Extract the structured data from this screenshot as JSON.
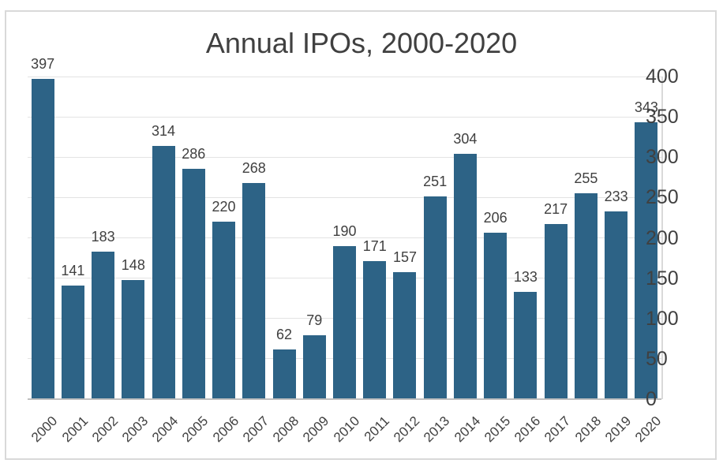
{
  "chart_data": {
    "type": "bar",
    "title": "Annual IPOs, 2000-2020",
    "categories": [
      "2000",
      "2001",
      "2002",
      "2003",
      "2004",
      "2005",
      "2006",
      "2007",
      "2008",
      "2009",
      "2010",
      "2011",
      "2012",
      "2013",
      "2014",
      "2015",
      "2016",
      "2017",
      "2018",
      "2019",
      "2020"
    ],
    "values": [
      397,
      141,
      183,
      148,
      314,
      286,
      220,
      268,
      62,
      79,
      190,
      171,
      157,
      251,
      304,
      206,
      133,
      217,
      255,
      233,
      343
    ],
    "data_labels_shown": true,
    "xlabel": "",
    "ylabel": "",
    "ylim": [
      0,
      400
    ],
    "yticks": [
      0,
      50,
      100,
      150,
      200,
      250,
      300,
      350,
      400
    ],
    "y_axis_side": "right",
    "grid": "horizontal",
    "legend_position": "none",
    "colors": {
      "bar": "#2D6386",
      "gridline": "#E3E3E3",
      "axis_line": "#BFBFBF",
      "plot_border": "#D9D9D9",
      "outer_border": "#D9D9D9",
      "text": "#404040",
      "background": "#FFFFFF"
    }
  }
}
